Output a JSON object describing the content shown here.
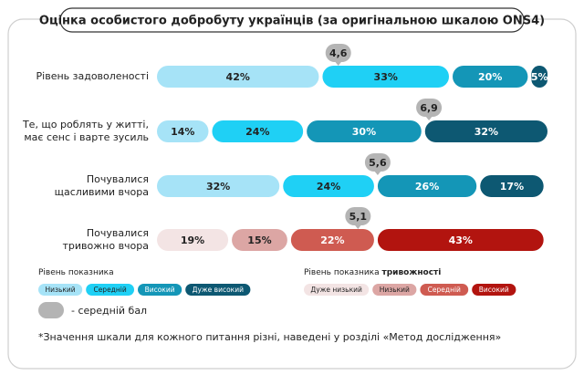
{
  "title": "Оцінка особистого добробуту українців (за оригінальною шкалою ONS4)",
  "note": "*Значення шкали для кожного питання різні, наведені у розділі «Метод дослідження»",
  "mean_legend": "- середній бал",
  "chart_data": [
    {
      "type": "bar",
      "orientation": "horizontal",
      "stacked": true,
      "xlim": [
        0,
        100
      ],
      "legend_title": "Рівень показника",
      "categories": [
        "Рівень задоволеності",
        "Те, що роблять у житті,\nмає сенс і варте зусиль",
        "Почувалися\nщасливими вчора"
      ],
      "series": [
        {
          "name": "Низький",
          "color": "#a6e3f7",
          "values": [
            42,
            14,
            32
          ],
          "value_labels": [
            "42%",
            "14%",
            "32%"
          ]
        },
        {
          "name": "Середній",
          "color": "#1fd0f5",
          "values": [
            33,
            24,
            24
          ],
          "value_labels": [
            "33%",
            "24%",
            "24%"
          ]
        },
        {
          "name": "Високий",
          "color": "#1496b7",
          "values": [
            20,
            30,
            26
          ],
          "value_labels": [
            "20%",
            "30%",
            "26%"
          ]
        },
        {
          "name": "Дуже високий",
          "color": "#0d5872",
          "values": [
            5,
            32,
            17
          ],
          "value_labels": [
            "5%",
            "32%",
            "17%"
          ]
        }
      ],
      "means": {
        "xlim": [
          0,
          10
        ],
        "color": "#b4b4b4",
        "values": [
          4.6,
          6.9,
          5.6
        ],
        "value_labels": [
          "4,6",
          "6,9",
          "5,6"
        ]
      }
    },
    {
      "type": "bar",
      "orientation": "horizontal",
      "stacked": true,
      "xlim": [
        0,
        100
      ],
      "legend_title": "Рівень показника",
      "legend_title_bold": "тривожності",
      "categories": [
        "Почувалися\nтривожно вчора"
      ],
      "series": [
        {
          "name": "Дуже низький",
          "color": "#f3e4e4",
          "values": [
            19
          ],
          "value_labels": [
            "19%"
          ]
        },
        {
          "name": "Низький",
          "color": "#dca6a4",
          "values": [
            15
          ],
          "value_labels": [
            "15%"
          ]
        },
        {
          "name": "Середній",
          "color": "#cf5b51",
          "values": [
            22
          ],
          "value_labels": [
            "22%"
          ]
        },
        {
          "name": "Високий",
          "color": "#b2140f",
          "values": [
            43
          ],
          "value_labels": [
            "43%"
          ]
        }
      ],
      "means": {
        "xlim": [
          0,
          10
        ],
        "color": "#b4b4b4",
        "values": [
          5.1
        ],
        "value_labels": [
          "5,1"
        ]
      }
    }
  ]
}
